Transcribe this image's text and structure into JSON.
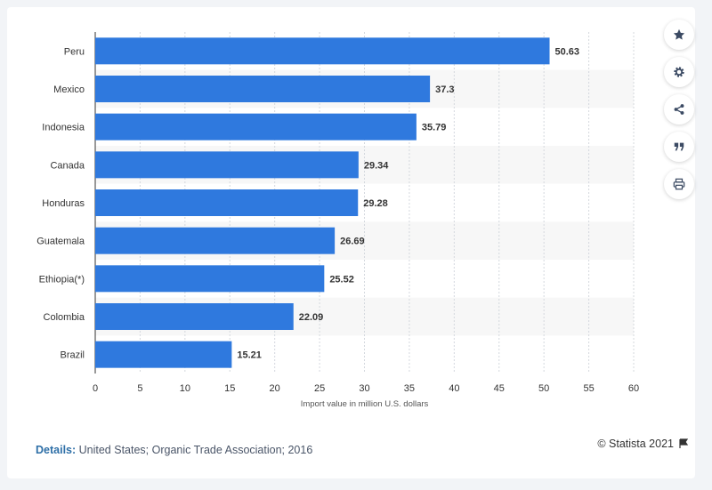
{
  "chart_data": {
    "type": "bar",
    "orientation": "horizontal",
    "categories": [
      "Peru",
      "Mexico",
      "Indonesia",
      "Canada",
      "Honduras",
      "Guatemala",
      "Ethiopia(*)",
      "Colombia",
      "Brazil"
    ],
    "values": [
      50.63,
      37.3,
      35.79,
      29.34,
      29.28,
      26.69,
      25.52,
      22.09,
      15.21
    ],
    "value_labels": [
      "50.63",
      "37.3",
      "35.79",
      "29.34",
      "29.28",
      "26.69",
      "25.52",
      "22.09",
      "15.21"
    ],
    "xlabel": "Import value in million U.S. dollars",
    "xlim": [
      0,
      60
    ],
    "xticks": [
      0,
      5,
      10,
      15,
      20,
      25,
      30,
      35,
      40,
      45,
      50,
      55,
      60
    ],
    "grid": true,
    "bar_color": "#2f79de",
    "alt_row_color": "#f7f7f7"
  },
  "footer": {
    "details_label": "Details:",
    "details_text": " United States; Organic Trade Association; 2016",
    "credit": "© Statista 2021"
  },
  "toolbar": {
    "icons": [
      "star-icon",
      "gear-icon",
      "share-icon",
      "quote-icon",
      "print-icon"
    ]
  }
}
